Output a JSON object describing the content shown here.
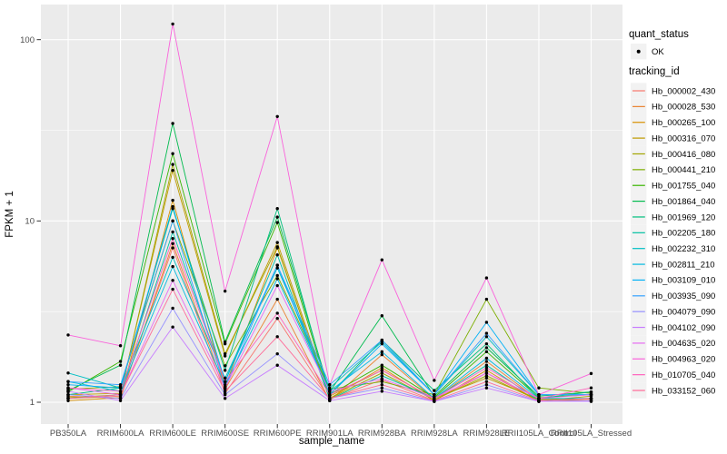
{
  "chart_data": {
    "type": "line",
    "title": "",
    "xlabel": "sample_name",
    "ylabel": "FPKM + 1",
    "y_scale": "log10",
    "y_ticks": [
      "1",
      "10",
      "100"
    ],
    "y_tick_values": [
      1,
      10,
      100
    ],
    "y_minor_values": [
      3.162,
      31.62
    ],
    "ylim_log": [
      -0.12,
      2.19
    ],
    "grid": true,
    "panel_bg": "#ebebeb",
    "grid_color": "#ffffff",
    "point_color": "#000000",
    "categories": [
      "PB350LA",
      "RRIM600LA",
      "RRIM600LE",
      "RRIM600SE",
      "RRIM600PE",
      "RRIM901LA",
      "RRIM928BA",
      "RRIM928LA",
      "RRIM928LE",
      "RRII105LA_Control",
      "RRII105LA_Stressed"
    ],
    "legend": {
      "quant_status_title": "quant_status",
      "quant_status_items": [
        {
          "label": "OK",
          "marker": "point"
        }
      ],
      "tracking_id_title": "tracking_id",
      "position": "right"
    },
    "series": [
      {
        "name": "Hb_000002_430",
        "color": "#F8766D",
        "values": [
          1.05,
          1.08,
          7.1,
          1.12,
          2.9,
          1.04,
          1.33,
          1.02,
          1.45,
          1.02,
          1.04
        ]
      },
      {
        "name": "Hb_000028_530",
        "color": "#EA8331",
        "values": [
          1.08,
          1.05,
          7.5,
          1.18,
          3.7,
          1.02,
          1.83,
          1.04,
          1.68,
          1.03,
          1.02
        ]
      },
      {
        "name": "Hb_000265_100",
        "color": "#D89000",
        "values": [
          1.02,
          1.06,
          13.0,
          1.22,
          7.1,
          1.05,
          1.55,
          1.02,
          1.5,
          1.01,
          1.02
        ]
      },
      {
        "name": "Hb_000316_070",
        "color": "#C09B00",
        "values": [
          1.1,
          1.12,
          19.0,
          1.8,
          7.6,
          1.08,
          1.5,
          1.05,
          1.36,
          1.04,
          1.05
        ]
      },
      {
        "name": "Hb_000416_080",
        "color": "#A3A500",
        "values": [
          1.06,
          1.1,
          20.5,
          1.85,
          7.2,
          1.05,
          1.45,
          1.03,
          1.4,
          1.02,
          1.08
        ]
      },
      {
        "name": "Hb_000441_210",
        "color": "#7CAE00",
        "values": [
          1.18,
          1.22,
          10.0,
          1.59,
          5.0,
          1.18,
          1.3,
          1.1,
          3.7,
          1.2,
          1.12
        ]
      },
      {
        "name": "Hb_001755_040",
        "color": "#39B600",
        "values": [
          1.14,
          1.68,
          23.5,
          2.1,
          9.8,
          1.1,
          1.6,
          1.06,
          1.9,
          1.06,
          1.1
        ]
      },
      {
        "name": "Hb_001864_040",
        "color": "#00BB4E",
        "values": [
          1.16,
          1.6,
          34.5,
          2.15,
          10.5,
          1.14,
          3.0,
          1.08,
          2.0,
          1.08,
          1.14
        ]
      },
      {
        "name": "Hb_001969_120",
        "color": "#00BF7D",
        "values": [
          1.1,
          1.2,
          11.7,
          1.5,
          11.7,
          1.1,
          2.2,
          1.16,
          2.1,
          1.05,
          1.14
        ]
      },
      {
        "name": "Hb_002205_180",
        "color": "#00C1A3",
        "values": [
          1.05,
          1.1,
          8.7,
          1.3,
          6.5,
          1.04,
          1.4,
          1.05,
          1.6,
          1.02,
          1.05
        ]
      },
      {
        "name": "Hb_002232_310",
        "color": "#00BFC4",
        "values": [
          1.45,
          1.2,
          6.3,
          1.36,
          5.5,
          1.2,
          2.15,
          1.1,
          2.3,
          1.1,
          1.1
        ]
      },
      {
        "name": "Hb_002811_210",
        "color": "#00BAE0",
        "values": [
          1.3,
          1.15,
          5.6,
          1.25,
          4.8,
          1.15,
          1.9,
          1.05,
          1.75,
          1.05,
          1.05
        ]
      },
      {
        "name": "Hb_003109_010",
        "color": "#00B0F6",
        "values": [
          1.25,
          1.2,
          12.0,
          1.3,
          5.7,
          1.1,
          2.1,
          1.1,
          2.76,
          1.1,
          1.1
        ]
      },
      {
        "name": "Hb_003935_090",
        "color": "#35A2FF",
        "values": [
          1.3,
          1.25,
          10.0,
          1.2,
          5.7,
          1.25,
          2.2,
          1.1,
          2.4,
          1.1,
          1.1
        ]
      },
      {
        "name": "Hb_004079_090",
        "color": "#9590FF",
        "values": [
          1.1,
          1.05,
          3.3,
          1.1,
          1.85,
          1.05,
          1.2,
          1.01,
          1.25,
          1.01,
          1.02
        ]
      },
      {
        "name": "Hb_004102_090",
        "color": "#C77CFF",
        "values": [
          1.15,
          1.02,
          2.6,
          1.05,
          1.6,
          1.02,
          1.15,
          1.01,
          1.2,
          1.01,
          1.01
        ]
      },
      {
        "name": "Hb_004635_020",
        "color": "#E76BF3",
        "values": [
          1.2,
          1.1,
          4.7,
          1.2,
          4.4,
          1.15,
          1.35,
          1.05,
          1.45,
          1.05,
          1.1
        ]
      },
      {
        "name": "Hb_004963_020",
        "color": "#FA62DB",
        "values": [
          2.35,
          2.05,
          122.0,
          4.1,
          37.7,
          1.25,
          6.1,
          1.32,
          4.85,
          1.1,
          1.44
        ]
      },
      {
        "name": "Hb_010705_040",
        "color": "#FF62BC",
        "values": [
          1.2,
          1.15,
          8.0,
          1.3,
          3.1,
          1.1,
          1.5,
          1.05,
          1.55,
          1.05,
          1.2
        ]
      },
      {
        "name": "Hb_033152_060",
        "color": "#FF6A98",
        "values": [
          1.05,
          1.1,
          4.2,
          1.15,
          2.3,
          1.05,
          1.25,
          1.02,
          1.3,
          1.02,
          1.05
        ]
      }
    ]
  }
}
